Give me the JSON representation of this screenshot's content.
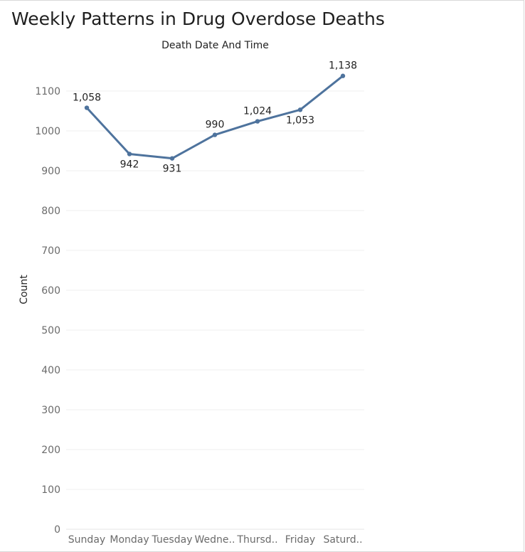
{
  "title": "Weekly Patterns in Drug Overdose Deaths",
  "chart_data": {
    "type": "line",
    "title": "Weekly Patterns in Drug Overdose Deaths",
    "xlabel": "Death Date And Time",
    "ylabel": "Count",
    "categories": [
      "Sunday",
      "Monday",
      "Tuesday",
      "Wedne..",
      "Thursd..",
      "Friday",
      "Saturd.."
    ],
    "series": [
      {
        "values": [
          1058,
          942,
          931,
          990,
          1024,
          1053,
          1138
        ],
        "labels": [
          "1,058",
          "942",
          "931",
          "990",
          "1,024",
          "1,053",
          "1,138"
        ]
      }
    ],
    "y_ticks": [
      0,
      100,
      200,
      300,
      400,
      500,
      600,
      700,
      800,
      900,
      1000,
      1100
    ],
    "ylim": [
      0,
      1190
    ],
    "grid": true,
    "legend": "none",
    "line_color": "#4e739d",
    "grid_color": "#efefef"
  }
}
